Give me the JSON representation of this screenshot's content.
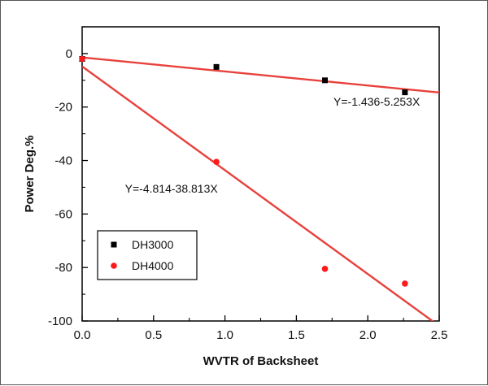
{
  "chart_data": {
    "type": "scatter",
    "xlabel": "WVTR of Backsheet",
    "ylabel": "Power Deg.%",
    "xlim": [
      0,
      2.5
    ],
    "ylim": [
      -100,
      10
    ],
    "xticks": [
      "0.0",
      "0.5",
      "1.0",
      "1.5",
      "2.0",
      "2.5"
    ],
    "yticks": [
      "0",
      "-20",
      "-40",
      "-60",
      "-80",
      "-100"
    ],
    "xtick_values": [
      0,
      0.5,
      1.0,
      1.5,
      2.0,
      2.5
    ],
    "ytick_values": [
      0,
      -20,
      -40,
      -60,
      -80,
      -100
    ],
    "grid": false,
    "legend_position": "lower-left",
    "series": [
      {
        "name": "DH3000",
        "marker": "square",
        "color": "#000000",
        "x": [
          0,
          0.94,
          1.7,
          2.26
        ],
        "y": [
          -2,
          -5,
          -10,
          -14.5
        ]
      },
      {
        "name": "DH4000",
        "marker": "circle",
        "color": "#ff1a1a",
        "x": [
          0,
          0.94,
          1.7,
          2.26
        ],
        "y": [
          -2,
          -40.5,
          -80.5,
          -86
        ]
      }
    ],
    "fits": [
      {
        "series": "DH3000",
        "intercept": -1.436,
        "slope": -5.253,
        "color": "#e8413c",
        "label": "Y=-1.436-5.253X",
        "label_x": 1.76,
        "label_y": -19.5
      },
      {
        "series": "DH4000",
        "intercept": -4.814,
        "slope": -38.813,
        "color": "#e8413c",
        "label": "Y=-4.814-38.813X",
        "label_x": 0.3,
        "label_y": -52
      }
    ]
  }
}
